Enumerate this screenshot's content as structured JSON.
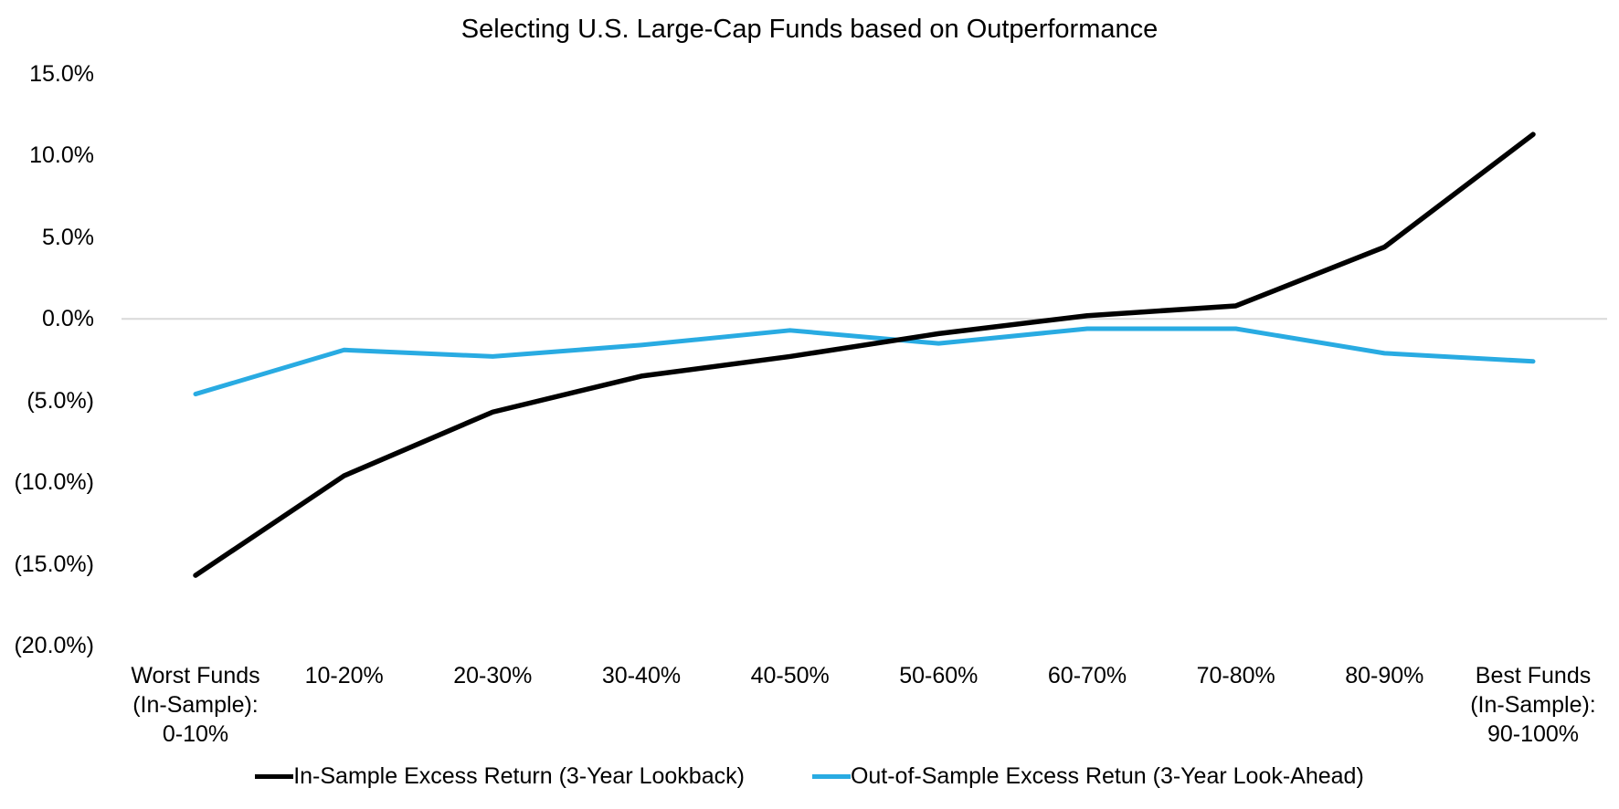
{
  "chart_data": {
    "type": "line",
    "title": "Selecting U.S. Large-Cap Funds based on Outperformance",
    "categories": [
      "Worst Funds\n(In-Sample):\n0-10%",
      "10-20%",
      "20-30%",
      "30-40%",
      "40-50%",
      "50-60%",
      "60-70%",
      "70-80%",
      "80-90%",
      "Best Funds\n(In-Sample):\n90-100%"
    ],
    "series": [
      {
        "name": "In-Sample Excess Return (3-Year Lookback)",
        "color": "#000000",
        "stroke_width": 5.5,
        "values": [
          -15.7,
          -9.6,
          -5.7,
          -3.5,
          -2.3,
          -0.9,
          0.2,
          0.8,
          4.4,
          11.3
        ]
      },
      {
        "name": "Out-of-Sample Excess Retun (3-Year Look-Ahead)",
        "color": "#29ABE2",
        "stroke_width": 5,
        "values": [
          -4.6,
          -1.9,
          -2.3,
          -1.6,
          -0.7,
          -1.5,
          -0.6,
          -0.6,
          -2.1,
          -2.6
        ]
      }
    ],
    "y_axis": {
      "min": -20,
      "max": 15,
      "tick_step": 5,
      "tick_labels": [
        "15.0%",
        "10.0%",
        "5.0%",
        "0.0%",
        "(5.0%)",
        "(10.0%)",
        "(15.0%)",
        "(20.0%)"
      ],
      "unit": "percent"
    },
    "grid": {
      "zero_line_only": true,
      "zero_line_color": "#D9D9D9"
    },
    "legend_position": "bottom"
  }
}
